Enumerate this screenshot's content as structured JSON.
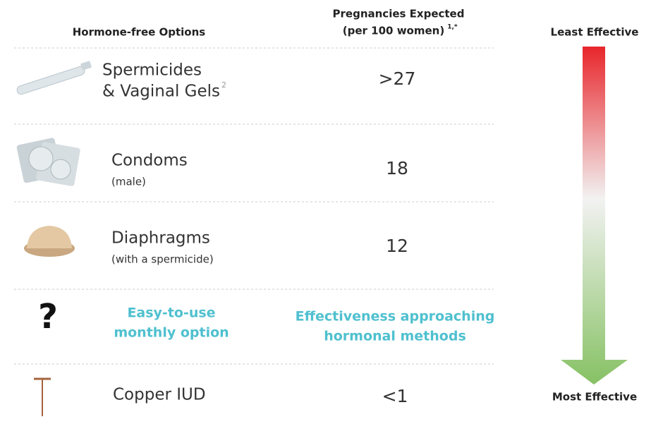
{
  "header": {
    "options": "Hormone-free Options",
    "expected_line1": "Pregnancies Expected",
    "expected_line2": "(per 100 women)",
    "expected_note": "1,*"
  },
  "rows": [
    {
      "name": "Spermicides",
      "name2": "& Vaginal Gels",
      "note": "2",
      "value": ">27"
    },
    {
      "name": "Condoms",
      "detail": "(male)",
      "value": "18"
    },
    {
      "name": "Diaphragms",
      "detail": "(with a spermicide)",
      "value": "12"
    },
    {
      "icon": "?",
      "option_line1": "Easy-to-use",
      "option_line2": "monthly option",
      "value_line1": "Effectiveness approaching",
      "value_line2": "hormonal methods"
    },
    {
      "name": "Copper IUD",
      "value": "<1"
    }
  ],
  "scale": {
    "top": "Least Effective",
    "bottom": "Most Effective"
  }
}
